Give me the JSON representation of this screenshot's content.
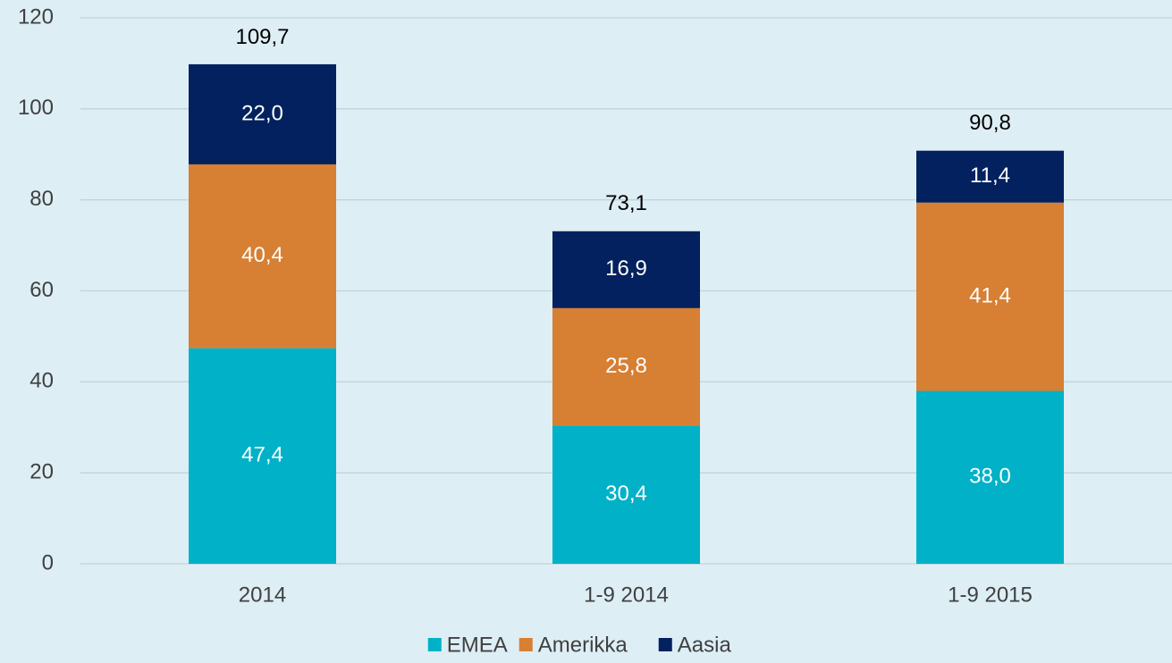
{
  "chart_data": {
    "type": "stacked_bar",
    "categories": [
      "2014",
      "1-9 2014",
      "1-9 2015"
    ],
    "series": [
      {
        "name": "EMEA",
        "color": "#00b1c7",
        "values": [
          47.4,
          30.4,
          38.0
        ],
        "value_labels": [
          "47,4",
          "30,4",
          "38,0"
        ]
      },
      {
        "name": "Amerikka",
        "color": "#d77f33",
        "values": [
          40.4,
          25.8,
          41.4
        ],
        "value_labels": [
          "40,4",
          "25,8",
          "41,4"
        ]
      },
      {
        "name": "Aasia",
        "color": "#03215e",
        "values": [
          22.0,
          16.9,
          11.4
        ],
        "value_labels": [
          "22,0",
          "16,9",
          "11,4"
        ]
      }
    ],
    "totals": {
      "values": [
        109.7,
        73.1,
        90.8
      ],
      "value_labels": [
        "109,7",
        "73,1",
        "90,8"
      ]
    },
    "ylim": [
      0,
      120
    ],
    "yticks": [
      0,
      20,
      40,
      60,
      80,
      100,
      120
    ],
    "grid": true,
    "legend": "bottom"
  }
}
